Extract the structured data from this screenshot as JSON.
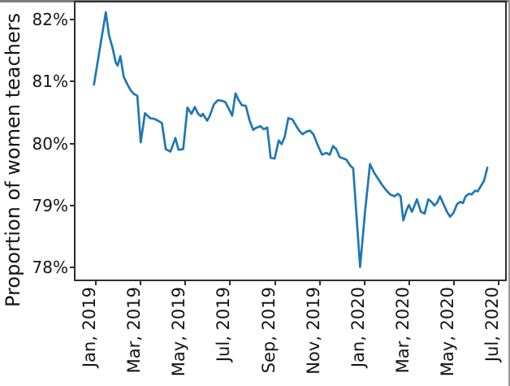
{
  "figure": {
    "background": "#ffffff",
    "spine_color": "#2e2e2e",
    "text_color": "#141414",
    "window_edge_color": "#7d7d7d"
  },
  "chart_data": {
    "type": "line",
    "title": "",
    "xlabel": "",
    "ylabel": "Proportion of women teachers",
    "x_axis_unit": "months since Jan 2019",
    "xlim": [
      -0.94,
      18.33
    ],
    "ylim": [
      77.8,
      82.29
    ],
    "grid": false,
    "legend_position": "none",
    "line_color": "#1f77b4",
    "line_width": 2.7,
    "x_ticks": [
      {
        "m": 0,
        "label": "Jan, 2019"
      },
      {
        "m": 2,
        "label": "Mar, 2019"
      },
      {
        "m": 4,
        "label": "May, 2019"
      },
      {
        "m": 6,
        "label": "Jul, 2019"
      },
      {
        "m": 8,
        "label": "Sep, 2019"
      },
      {
        "m": 10,
        "label": "Nov, 2019"
      },
      {
        "m": 12,
        "label": "Jan, 2020"
      },
      {
        "m": 14,
        "label": "Mar, 2020"
      },
      {
        "m": 16,
        "label": "May, 2020"
      },
      {
        "m": 18,
        "label": "Jul, 2020"
      }
    ],
    "y_ticks": [
      {
        "v": 78,
        "label": "78%"
      },
      {
        "v": 79,
        "label": "79%"
      },
      {
        "v": 80,
        "label": "80%"
      },
      {
        "v": 81,
        "label": "81%"
      },
      {
        "v": 82,
        "label": "82%"
      }
    ],
    "series": [
      {
        "name": "Proportion of women teachers",
        "points": [
          [
            -0.09,
            80.95
          ],
          [
            0.17,
            81.53
          ],
          [
            0.44,
            82.12
          ],
          [
            0.58,
            81.75
          ],
          [
            0.73,
            81.56
          ],
          [
            0.89,
            81.3
          ],
          [
            0.97,
            81.26
          ],
          [
            1.09,
            81.41
          ],
          [
            1.24,
            81.08
          ],
          [
            1.4,
            80.96
          ],
          [
            1.55,
            80.86
          ],
          [
            1.7,
            80.8
          ],
          [
            1.85,
            80.77
          ],
          [
            2.0,
            80.02
          ],
          [
            2.19,
            80.49
          ],
          [
            2.42,
            80.41
          ],
          [
            2.6,
            80.4
          ],
          [
            2.77,
            80.37
          ],
          [
            2.95,
            80.33
          ],
          [
            3.12,
            79.91
          ],
          [
            3.33,
            79.87
          ],
          [
            3.55,
            80.09
          ],
          [
            3.69,
            79.9
          ],
          [
            3.9,
            79.91
          ],
          [
            4.09,
            80.58
          ],
          [
            4.27,
            80.48
          ],
          [
            4.42,
            80.59
          ],
          [
            4.57,
            80.48
          ],
          [
            4.7,
            80.44
          ],
          [
            4.78,
            80.48
          ],
          [
            4.97,
            80.37
          ],
          [
            5.09,
            80.45
          ],
          [
            5.27,
            80.63
          ],
          [
            5.45,
            80.7
          ],
          [
            5.63,
            80.69
          ],
          [
            5.78,
            80.67
          ],
          [
            5.94,
            80.56
          ],
          [
            6.09,
            80.45
          ],
          [
            6.24,
            80.81
          ],
          [
            6.38,
            80.7
          ],
          [
            6.52,
            80.62
          ],
          [
            6.7,
            80.61
          ],
          [
            6.87,
            80.37
          ],
          [
            7.03,
            80.22
          ],
          [
            7.14,
            80.25
          ],
          [
            7.35,
            80.28
          ],
          [
            7.51,
            80.23
          ],
          [
            7.66,
            80.26
          ],
          [
            7.81,
            79.77
          ],
          [
            7.99,
            79.76
          ],
          [
            8.17,
            80.05
          ],
          [
            8.3,
            79.99
          ],
          [
            8.44,
            80.11
          ],
          [
            8.6,
            80.41
          ],
          [
            8.78,
            80.39
          ],
          [
            8.93,
            80.3
          ],
          [
            9.08,
            80.21
          ],
          [
            9.24,
            80.15
          ],
          [
            9.39,
            80.19
          ],
          [
            9.57,
            80.21
          ],
          [
            9.72,
            80.15
          ],
          [
            9.93,
            79.96
          ],
          [
            10.11,
            79.82
          ],
          [
            10.29,
            79.85
          ],
          [
            10.45,
            79.82
          ],
          [
            10.6,
            79.96
          ],
          [
            10.74,
            79.91
          ],
          [
            10.9,
            79.78
          ],
          [
            11.06,
            79.76
          ],
          [
            11.2,
            79.74
          ],
          [
            11.36,
            79.65
          ],
          [
            11.5,
            79.6
          ],
          [
            11.81,
            78.01
          ],
          [
            12.03,
            78.9
          ],
          [
            12.25,
            79.67
          ],
          [
            12.45,
            79.52
          ],
          [
            12.62,
            79.43
          ],
          [
            12.8,
            79.33
          ],
          [
            12.97,
            79.25
          ],
          [
            13.15,
            79.18
          ],
          [
            13.35,
            79.15
          ],
          [
            13.5,
            79.19
          ],
          [
            13.62,
            79.15
          ],
          [
            13.74,
            78.76
          ],
          [
            13.89,
            78.93
          ],
          [
            13.99,
            79.01
          ],
          [
            14.13,
            78.9
          ],
          [
            14.35,
            79.1
          ],
          [
            14.53,
            78.9
          ],
          [
            14.69,
            78.87
          ],
          [
            14.86,
            79.1
          ],
          [
            15.0,
            79.06
          ],
          [
            15.13,
            79.0
          ],
          [
            15.26,
            79.05
          ],
          [
            15.38,
            79.15
          ],
          [
            15.54,
            79.02
          ],
          [
            15.68,
            78.91
          ],
          [
            15.83,
            78.82
          ],
          [
            15.98,
            78.88
          ],
          [
            16.14,
            79.02
          ],
          [
            16.29,
            79.06
          ],
          [
            16.41,
            79.04
          ],
          [
            16.53,
            79.15
          ],
          [
            16.68,
            79.19
          ],
          [
            16.8,
            79.18
          ],
          [
            16.95,
            79.24
          ],
          [
            17.07,
            79.23
          ],
          [
            17.2,
            79.31
          ],
          [
            17.35,
            79.4
          ],
          [
            17.5,
            79.61
          ]
        ]
      }
    ]
  }
}
